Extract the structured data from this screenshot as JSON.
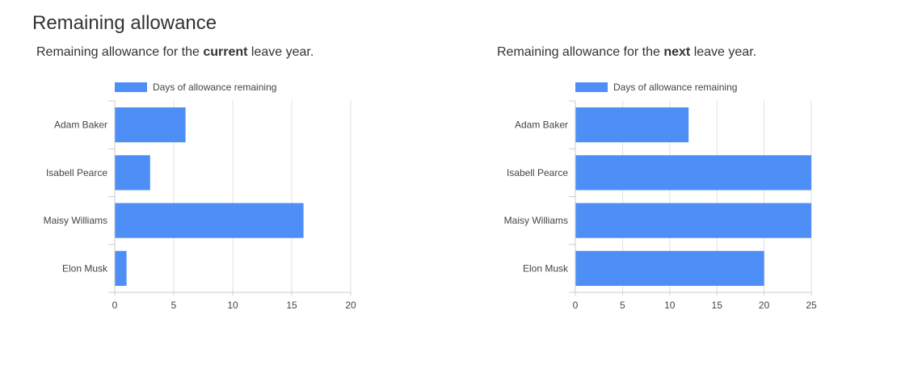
{
  "page": {
    "title": "Remaining allowance"
  },
  "captions": {
    "current": {
      "prefix": "Remaining allowance for the ",
      "emphasis": "current",
      "suffix": " leave year."
    },
    "next": {
      "prefix": "Remaining allowance for the ",
      "emphasis": "next",
      "suffix": " leave year."
    }
  },
  "colors": {
    "bar": "#4e8ef7",
    "axis": "#cccccc",
    "grid": "#e0e0e0"
  },
  "chart_data": [
    {
      "id": "current",
      "type": "bar",
      "orientation": "horizontal",
      "categories": [
        "Adam Baker",
        "Isabell Pearce",
        "Maisy Williams",
        "Elon Musk"
      ],
      "series": [
        {
          "name": "Days of allowance remaining",
          "values": [
            6,
            3,
            16,
            1
          ]
        }
      ],
      "xlim": [
        0,
        20
      ],
      "xticks": [
        0,
        5,
        10,
        15,
        20
      ],
      "legend": "top"
    },
    {
      "id": "next",
      "type": "bar",
      "orientation": "horizontal",
      "categories": [
        "Adam Baker",
        "Isabell Pearce",
        "Maisy Williams",
        "Elon Musk"
      ],
      "series": [
        {
          "name": "Days of allowance remaining",
          "values": [
            12,
            25,
            25,
            20
          ]
        }
      ],
      "xlim": [
        0,
        25
      ],
      "xticks": [
        0,
        5,
        10,
        15,
        20,
        25
      ],
      "legend": "top"
    }
  ]
}
